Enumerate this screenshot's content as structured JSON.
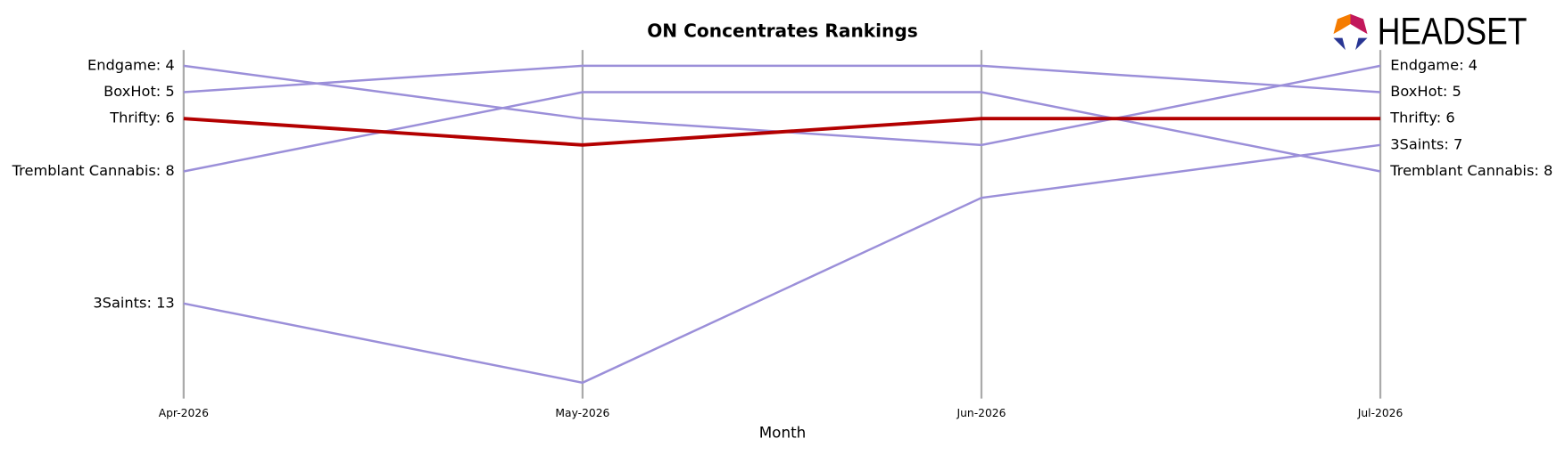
{
  "chart_data": {
    "type": "bump",
    "title": "ON Concentrates Rankings",
    "x_label": "Month",
    "logo": "HEADSET",
    "categories": [
      "Apr-2026",
      "May-2026",
      "Jun-2026",
      "Jul-2026"
    ],
    "ylim": [
      3.4,
      16.6
    ],
    "y_inverted": true,
    "series": [
      {
        "name": "Endgame",
        "color": "#9b8fd9",
        "values": [
          4,
          6,
          7,
          4
        ],
        "value_labels": [
          "Endgame: 4",
          null,
          null,
          "Endgame: 4"
        ]
      },
      {
        "name": "BoxHot",
        "color": "#9b8fd9",
        "values": [
          5,
          4,
          4,
          5
        ],
        "value_labels": [
          "BoxHot: 5",
          null,
          null,
          "BoxHot: 5"
        ]
      },
      {
        "name": "Tremblant Cannabis",
        "color": "#9b8fd9",
        "values": [
          8,
          5,
          5,
          8
        ],
        "value_labels": [
          "Tremblant Cannabis: 8",
          null,
          null,
          "Tremblant Cannabis: 8"
        ]
      },
      {
        "name": "3Saints",
        "color": "#9b8fd9",
        "values": [
          13,
          16,
          9,
          7
        ],
        "value_labels": [
          "3Saints: 13",
          null,
          null,
          "3Saints: 7"
        ]
      },
      {
        "name": "Thrifty",
        "color": "#b30000",
        "highlight": true,
        "values": [
          6,
          7,
          6,
          6
        ],
        "value_labels": [
          "Thrifty: 6",
          null,
          null,
          "Thrifty: 6"
        ]
      }
    ]
  }
}
